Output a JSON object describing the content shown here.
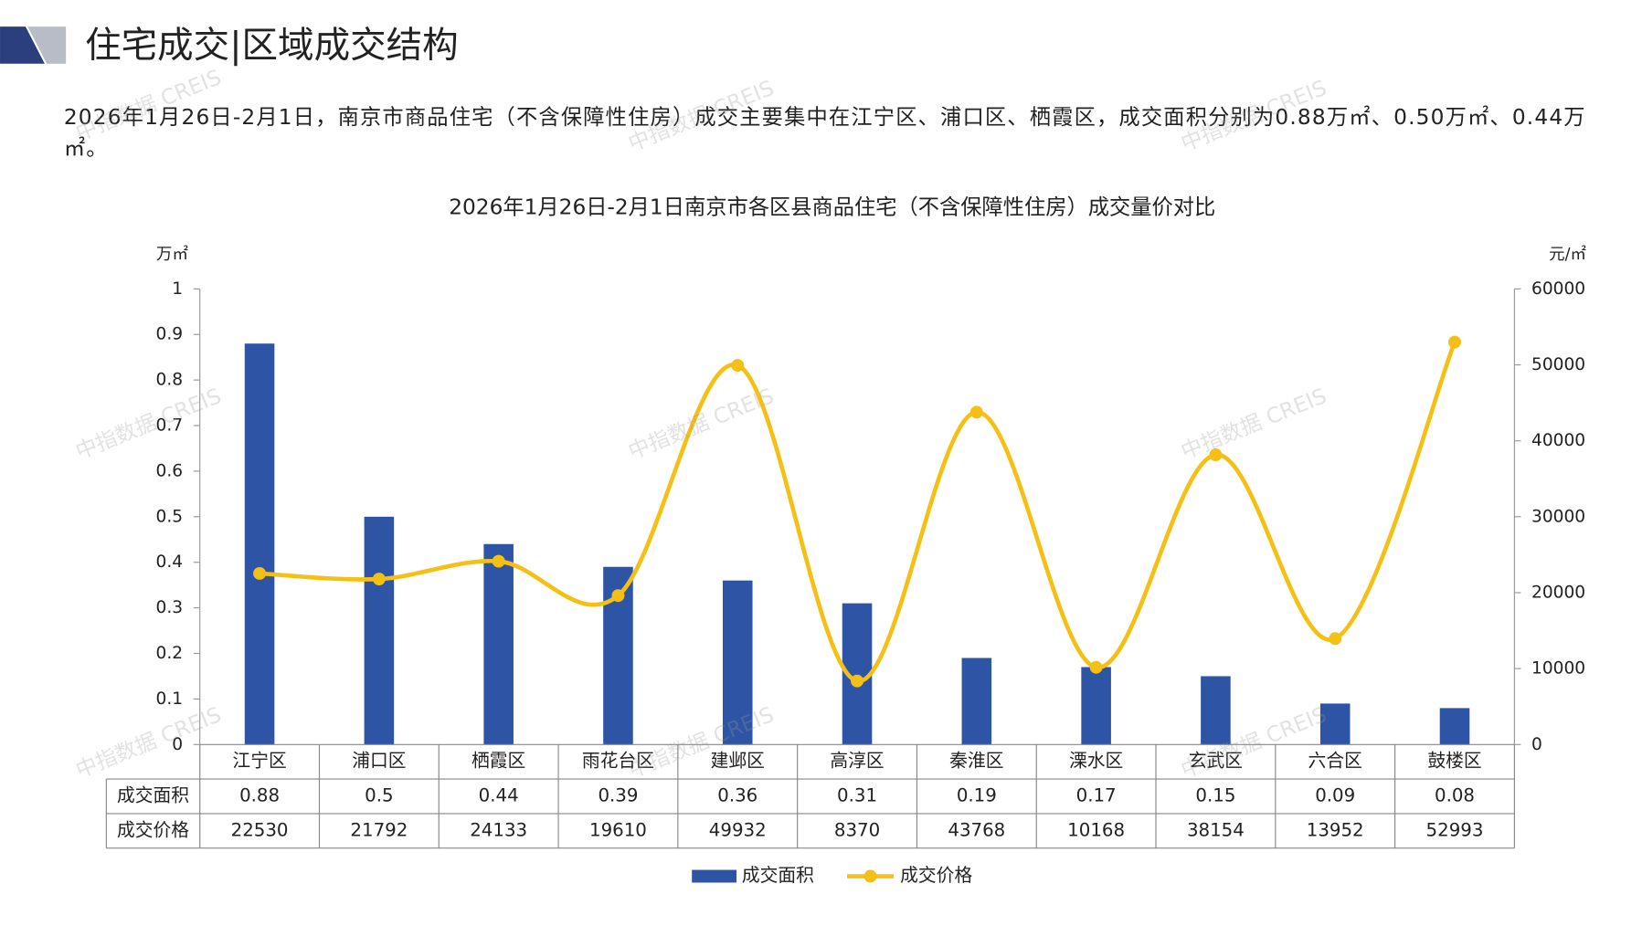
{
  "header": {
    "title": "住宅成交|区域成交结构"
  },
  "summary": "2026年1月26日-2月1日，南京市商品住宅（不含保障性住房）成交主要集中在江宁区、浦口区、栖霞区，成交面积分别为0.88万㎡、0.50万㎡、0.44万㎡。",
  "watermark": "中指数据 CREIS",
  "chart_data": {
    "type": "combo",
    "title": "2026年1月26日-2月1日南京市各区县商品住宅（不含保障性住房）成交量价对比",
    "y_label": "万㎡",
    "y2_label": "元/㎡",
    "categories": [
      "江宁区",
      "浦口区",
      "栖霞区",
      "雨花台区",
      "建邺区",
      "高淳区",
      "秦淮区",
      "溧水区",
      "玄武区",
      "六合区",
      "鼓楼区"
    ],
    "series": [
      {
        "name": "成交面积",
        "type": "bar",
        "color": "#2e55a5",
        "values": [
          0.88,
          0.5,
          0.44,
          0.39,
          0.36,
          0.31,
          0.19,
          0.17,
          0.15,
          0.09,
          0.08
        ]
      },
      {
        "name": "成交价格",
        "type": "line",
        "color": "#f5c016",
        "axis": "y2",
        "values": [
          22530,
          21792,
          24133,
          19610,
          49932,
          8370,
          43768,
          10168,
          38154,
          13952,
          52993
        ]
      }
    ],
    "ylim": [
      0,
      1
    ],
    "yticks": [
      0,
      0.1,
      0.2,
      0.3,
      0.4,
      0.5,
      0.6,
      0.7,
      0.8,
      0.9,
      1
    ],
    "y2lim": [
      0,
      60000
    ],
    "y2ticks": [
      0,
      10000,
      20000,
      30000,
      40000,
      50000,
      60000
    ],
    "legend": "bottom",
    "data_table": true
  }
}
